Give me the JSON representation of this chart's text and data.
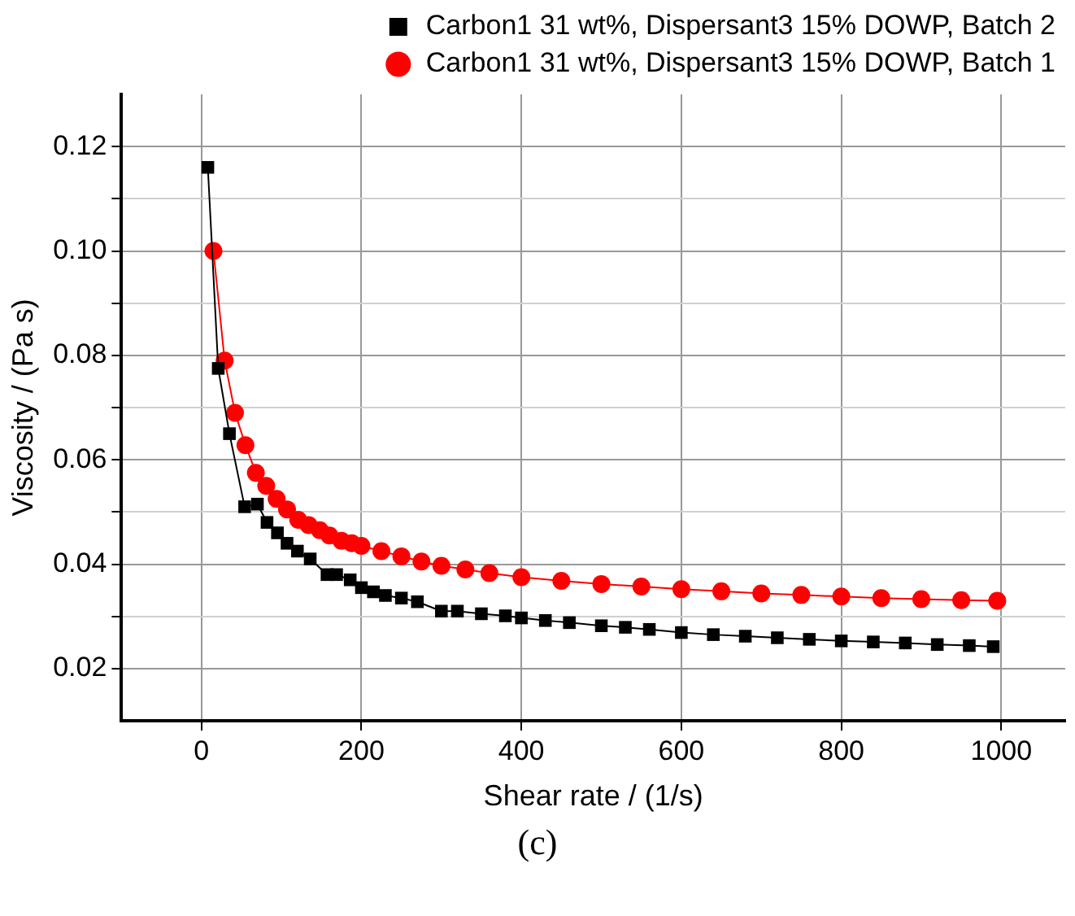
{
  "chart_data": {
    "type": "line",
    "xlabel": "Shear rate / (1/s)",
    "ylabel": "Viscosity / (Pa s)",
    "annotations": [
      "(c)"
    ],
    "xlim": [
      -100,
      1080
    ],
    "xticks": [
      0,
      200,
      400,
      600,
      800,
      1000
    ],
    "ylim": [
      0.01,
      0.13
    ],
    "yticks": [
      {
        "value": 0.02,
        "label": "0.02"
      },
      {
        "value": 0.03,
        "label": null
      },
      {
        "value": 0.04,
        "label": "0.04"
      },
      {
        "value": 0.05,
        "label": null
      },
      {
        "value": 0.06,
        "label": "0.06"
      },
      {
        "value": 0.07,
        "label": null
      },
      {
        "value": 0.08,
        "label": "0.08"
      },
      {
        "value": 0.09,
        "label": null
      },
      {
        "value": 0.1,
        "label": "0.10"
      },
      {
        "value": 0.11,
        "label": null
      },
      {
        "value": 0.12,
        "label": "0.12"
      }
    ],
    "grid": true,
    "legend": "top",
    "line_style": "solid",
    "series": [
      {
        "name": "Carbon1 31 wt%, Dispersant3 15% DOWP, Batch 2",
        "color": "#000000",
        "marker": "square",
        "x": [
          8,
          21,
          35,
          54,
          70,
          82,
          95,
          107,
          120,
          136,
          157,
          169,
          186,
          200,
          215,
          230,
          250,
          270,
          300,
          320,
          350,
          380,
          400,
          430,
          460,
          500,
          530,
          560,
          600,
          640,
          680,
          720,
          760,
          800,
          840,
          880,
          920,
          960,
          990
        ],
        "values": [
          0.116,
          0.0775,
          0.065,
          0.051,
          0.0515,
          0.048,
          0.046,
          0.044,
          0.0425,
          0.041,
          0.038,
          0.038,
          0.037,
          0.0355,
          0.0347,
          0.034,
          0.0335,
          0.0328,
          0.031,
          0.031,
          0.0305,
          0.0301,
          0.0297,
          0.0292,
          0.0288,
          0.0282,
          0.0279,
          0.0275,
          0.0269,
          0.0265,
          0.0262,
          0.0259,
          0.0256,
          0.0253,
          0.0251,
          0.0249,
          0.0246,
          0.0244,
          0.0242
        ]
      },
      {
        "name": "Carbon1 31 wt%, Dispersant3 15% DOWP, Batch 1",
        "color": "#ff0000",
        "marker": "circle",
        "x": [
          15,
          29,
          42,
          55,
          68,
          81,
          94,
          107,
          121,
          134,
          148,
          160,
          175,
          188,
          200,
          225,
          250,
          275,
          300,
          330,
          360,
          400,
          450,
          500,
          550,
          600,
          650,
          700,
          750,
          800,
          850,
          900,
          950,
          995
        ],
        "values": [
          0.1,
          0.079,
          0.069,
          0.0628,
          0.0575,
          0.055,
          0.0525,
          0.0505,
          0.0485,
          0.0475,
          0.0465,
          0.0455,
          0.0445,
          0.044,
          0.0435,
          0.0425,
          0.0415,
          0.0405,
          0.0397,
          0.039,
          0.0383,
          0.0375,
          0.0368,
          0.0362,
          0.0357,
          0.0352,
          0.0348,
          0.0344,
          0.0341,
          0.0338,
          0.0335,
          0.0333,
          0.0331,
          0.033
        ]
      }
    ]
  }
}
